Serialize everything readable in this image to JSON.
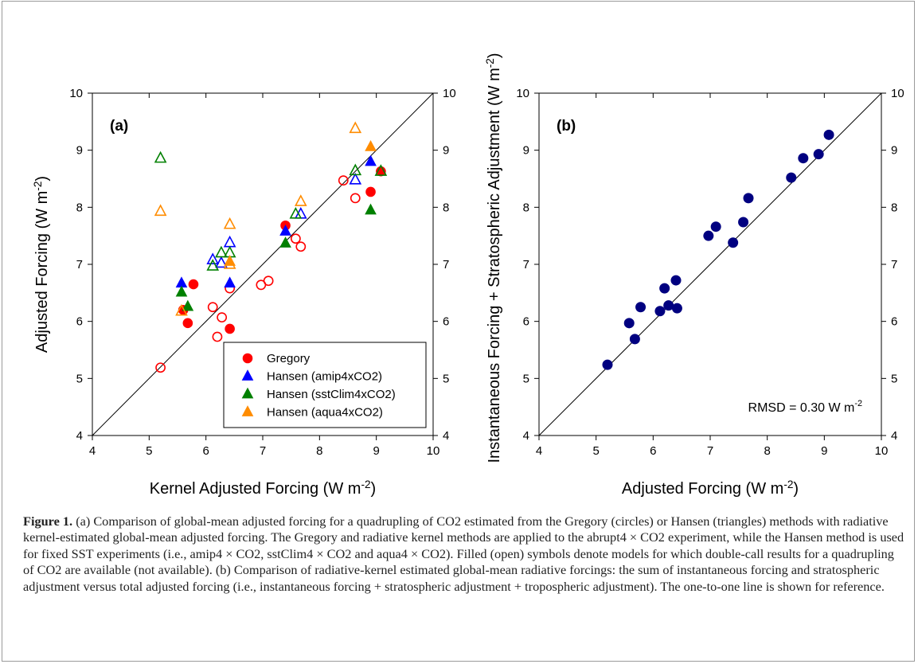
{
  "chart_data": [
    {
      "panel": "(a)",
      "type": "scatter",
      "xlabel": "Kernel Adjusted Forcing (W m-2)",
      "ylabel": "Adjusted Forcing (W m-2)",
      "xlim": [
        4,
        10
      ],
      "ylim": [
        4,
        10
      ],
      "xticks": [
        4,
        5,
        6,
        7,
        8,
        9,
        10
      ],
      "yticks": [
        4,
        5,
        6,
        7,
        8,
        9,
        10
      ],
      "one_to_one_line": true,
      "legend_position": "lower-right",
      "series": [
        {
          "name": "Gregory",
          "marker": "circle",
          "color": "#ff0000",
          "filled": [
            [
              5.6,
              6.2
            ],
            [
              5.68,
              5.97
            ],
            [
              5.78,
              6.65
            ],
            [
              6.42,
              5.87
            ],
            [
              7.4,
              7.68
            ],
            [
              8.9,
              8.27
            ],
            [
              9.08,
              8.63
            ]
          ],
          "open": [
            [
              5.2,
              5.19
            ],
            [
              6.12,
              6.25
            ],
            [
              6.2,
              5.73
            ],
            [
              6.28,
              6.07
            ],
            [
              6.42,
              6.58
            ],
            [
              6.97,
              6.64
            ],
            [
              7.1,
              6.71
            ],
            [
              7.58,
              7.45
            ],
            [
              7.67,
              7.31
            ],
            [
              8.42,
              8.47
            ],
            [
              8.63,
              8.16
            ]
          ]
        },
        {
          "name": "Hansen (amip4xCO2)",
          "marker": "triangle",
          "color": "#0000ff",
          "filled": [
            [
              5.57,
              6.67
            ],
            [
              6.42,
              6.67
            ],
            [
              7.4,
              7.58
            ],
            [
              8.9,
              8.8
            ]
          ],
          "open": [
            [
              6.12,
              7.08
            ],
            [
              6.27,
              7.02
            ],
            [
              6.42,
              7.38
            ],
            [
              7.67,
              7.88
            ],
            [
              8.63,
              8.48
            ]
          ]
        },
        {
          "name": "Hansen (sstClim4xCO2)",
          "marker": "triangle",
          "color": "#008000",
          "filled": [
            [
              5.57,
              6.51
            ],
            [
              5.68,
              6.26
            ],
            [
              7.4,
              7.37
            ],
            [
              8.9,
              7.95
            ]
          ],
          "open": [
            [
              5.2,
              8.86
            ],
            [
              6.12,
              6.97
            ],
            [
              6.27,
              7.2
            ],
            [
              6.42,
              7.2
            ],
            [
              7.58,
              7.88
            ],
            [
              8.63,
              8.64
            ],
            [
              9.08,
              8.63
            ]
          ]
        },
        {
          "name": "Hansen (aqua4xCO2)",
          "marker": "triangle",
          "color": "#ff8c00",
          "filled": [
            [
              6.42,
              7.05
            ],
            [
              8.9,
              9.06
            ]
          ],
          "open": [
            [
              5.2,
              7.93
            ],
            [
              5.57,
              6.18
            ],
            [
              6.42,
              7.7
            ],
            [
              6.42,
              7.0
            ],
            [
              7.67,
              8.1
            ],
            [
              8.63,
              9.38
            ]
          ]
        }
      ]
    },
    {
      "panel": "(b)",
      "type": "scatter",
      "xlabel": "Adjusted Forcing (W m-2)",
      "ylabel": "Instantaneous Forcing + Stratospheric Adjustment (W m-2)",
      "xlim": [
        4,
        10
      ],
      "ylim": [
        4,
        10
      ],
      "xticks": [
        4,
        5,
        6,
        7,
        8,
        9,
        10
      ],
      "yticks": [
        4,
        5,
        6,
        7,
        8,
        9,
        10
      ],
      "one_to_one_line": true,
      "annotation": "RMSD = 0.30 W m-2",
      "marker_color": "#000080",
      "points": [
        [
          5.2,
          5.24
        ],
        [
          5.58,
          5.97
        ],
        [
          5.68,
          5.69
        ],
        [
          5.78,
          6.25
        ],
        [
          6.12,
          6.18
        ],
        [
          6.2,
          6.58
        ],
        [
          6.27,
          6.28
        ],
        [
          6.4,
          6.72
        ],
        [
          6.42,
          6.23
        ],
        [
          6.97,
          7.5
        ],
        [
          7.1,
          7.66
        ],
        [
          7.4,
          7.38
        ],
        [
          7.58,
          7.74
        ],
        [
          7.67,
          8.16
        ],
        [
          8.42,
          8.52
        ],
        [
          8.63,
          8.86
        ],
        [
          8.9,
          8.93
        ],
        [
          9.08,
          9.27
        ]
      ]
    }
  ],
  "caption": {
    "label": "Figure 1.",
    "text": "(a) Comparison of global-mean adjusted forcing for a quadrupling of CO2 estimated from the Gregory (circles) or Hansen (triangles) methods with radiative kernel-estimated global-mean adjusted forcing. The Gregory and radiative kernel methods are applied to the abrupt4 × CO2 experiment, while the Hansen method is used for fixed SST experiments (i.e., amip4 × CO2, sstClim4 × CO2 and aqua4 × CO2). Filled (open) symbols denote models for which double-call results for a quadrupling of CO2 are available (not available). (b) Comparison of radiative-kernel estimated global-mean radiative forcings: the sum of instantaneous forcing and stratospheric adjustment versus total adjusted forcing (i.e., instantaneous forcing + stratospheric adjustment + tropospheric adjustment). The one-to-one line is shown for reference."
  }
}
